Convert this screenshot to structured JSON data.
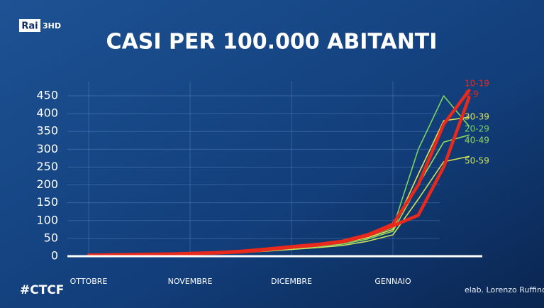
{
  "channel_logo": {
    "brand": "Rai",
    "channel": "3HD"
  },
  "hashtag": "#CTCF",
  "chart_data": {
    "type": "line",
    "title": "CASI PER 100.000 ABITANTI",
    "source": "elab. Lorenzo Ruffino",
    "categories": [
      "OTTOBRE",
      null,
      null,
      null,
      "NOVEMBRE",
      null,
      null,
      null,
      "DICEMBRE",
      null,
      null,
      null,
      "GENNAIO",
      null,
      null,
      null
    ],
    "ylim": [
      0,
      450
    ],
    "yticks": [
      0,
      50,
      100,
      150,
      200,
      250,
      300,
      350,
      400,
      450
    ],
    "grid": true,
    "series": [
      {
        "name": "10-19",
        "color": "#e8291c",
        "values": [
          3,
          4,
          5,
          6,
          8,
          10,
          14,
          20,
          27,
          33,
          42,
          60,
          90,
          200,
          370,
          465
        ]
      },
      {
        "name": "3-9",
        "color": "#e8291c",
        "values": [
          3,
          4,
          5,
          6,
          7,
          9,
          12,
          18,
          25,
          31,
          40,
          58,
          85,
          115,
          250,
          445
        ]
      },
      {
        "name": "30-39",
        "color": "#e4e452",
        "values": [
          3,
          4,
          5,
          6,
          8,
          10,
          13,
          18,
          24,
          30,
          38,
          52,
          75,
          230,
          380,
          390
        ]
      },
      {
        "name": "20-29",
        "color": "#7ad55a",
        "values": [
          3,
          4,
          5,
          6,
          8,
          10,
          14,
          19,
          26,
          32,
          40,
          55,
          80,
          300,
          450,
          365
        ]
      },
      {
        "name": "40-49",
        "color": "#8fdc5c",
        "values": [
          2,
          3,
          4,
          5,
          7,
          9,
          12,
          16,
          22,
          27,
          34,
          48,
          70,
          200,
          320,
          340
        ]
      },
      {
        "name": "50-59",
        "color": "#c9e25a",
        "values": [
          2,
          3,
          4,
          5,
          6,
          8,
          10,
          14,
          19,
          24,
          30,
          42,
          60,
          160,
          265,
          280
        ]
      }
    ]
  }
}
